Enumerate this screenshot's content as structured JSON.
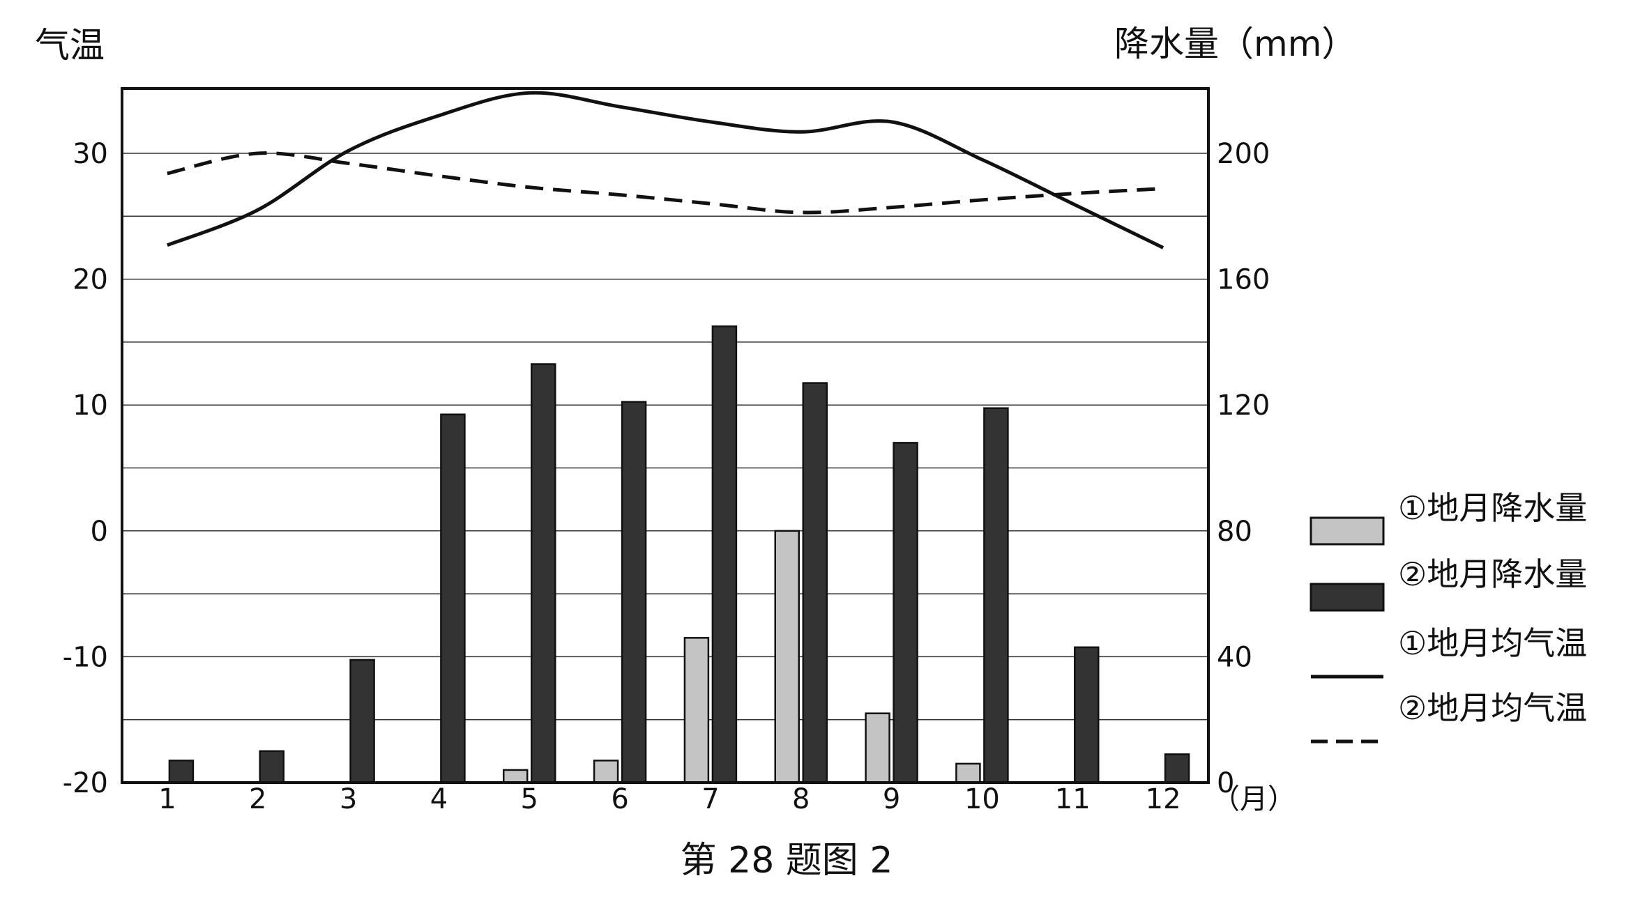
{
  "chart_data": {
    "type": "bar+line",
    "title": "第 28 题图 2",
    "left_axis_label": "气温",
    "right_axis_label": "降水量（mm）",
    "x_unit_label": "（月）",
    "categories": [
      "1",
      "2",
      "3",
      "4",
      "5",
      "6",
      "7",
      "8",
      "9",
      "10",
      "11",
      "12"
    ],
    "temperature_axis": {
      "ticks": [
        30,
        20,
        10,
        0,
        -10,
        -20
      ],
      "range": [
        -20,
        35
      ]
    },
    "precipitation_axis": {
      "ticks": [
        200,
        160,
        120,
        80,
        40,
        0
      ],
      "range": [
        0,
        226
      ]
    },
    "grid": true,
    "bar_series": [
      {
        "name": "①地月降水量",
        "color": "#c4c4c4",
        "values": [
          0,
          0,
          0,
          0,
          4,
          7,
          46,
          80,
          22,
          6,
          0,
          0
        ]
      },
      {
        "name": "②地月降水量",
        "color": "#333333",
        "values": [
          7,
          10,
          39,
          117,
          133,
          121,
          145,
          127,
          108,
          119,
          43,
          9
        ]
      }
    ],
    "line_series": [
      {
        "name": "①地月均气温",
        "style": "solid",
        "values": [
          22.7,
          25.5,
          30.2,
          33,
          34.8,
          33.7,
          32.5,
          31.7,
          32.5,
          29.5,
          26,
          22.5
        ]
      },
      {
        "name": "②地月均气温",
        "style": "dashed",
        "values": [
          28.4,
          30,
          29.2,
          28.2,
          27.3,
          26.7,
          26,
          25.3,
          25.7,
          26.3,
          26.8,
          27.2
        ]
      }
    ],
    "legend_position": "right"
  }
}
